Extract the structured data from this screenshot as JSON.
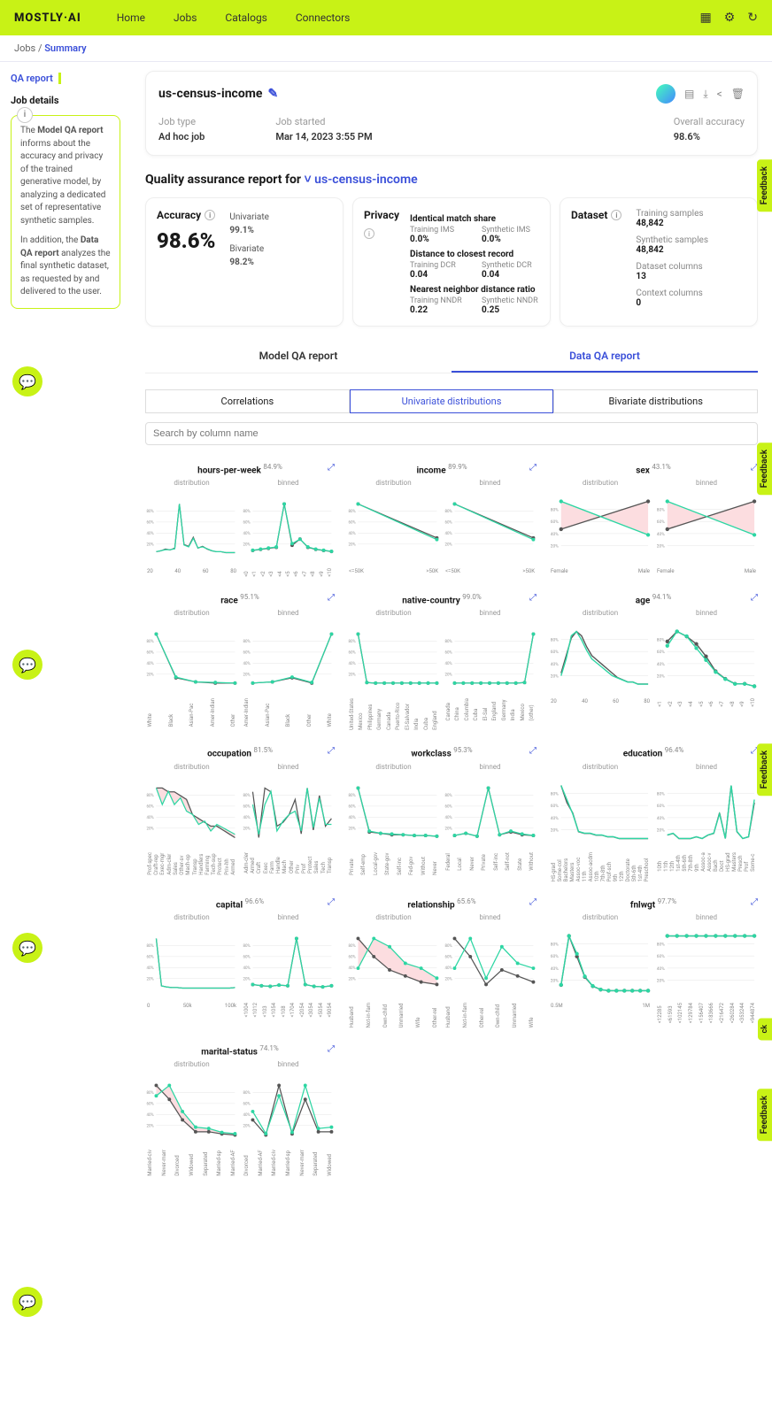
{
  "brand": "MOSTLY·AI",
  "nav": [
    "Home",
    "Jobs",
    "Catalogs",
    "Connectors"
  ],
  "breadcrumb": {
    "root": "Jobs",
    "current": "Summary"
  },
  "sidebar": {
    "title": "QA report",
    "subtitle": "Job details",
    "info_p1_a": "The ",
    "info_p1_b": "Model QA report",
    "info_p1_c": " informs about the accuracy and privacy of the trained generative model, by analyzing a dedicated set of representative synthetic samples.",
    "info_p2_a": "In addition, the ",
    "info_p2_b": "Data QA report",
    "info_p2_c": " analyzes the final synthetic dataset, as requested by and delivered to the user."
  },
  "job": {
    "title": "us-census-income",
    "type_label": "Job type",
    "type": "Ad hoc job",
    "started_label": "Job started",
    "started": "Mar 14, 2023 3:55 PM",
    "accuracy_label": "Overall accuracy",
    "accuracy": "98.6%"
  },
  "qa_heading_prefix": "Quality assurance report for",
  "qa_heading_link": "us-census-income",
  "accuracy_card": {
    "title": "Accuracy",
    "value": "98.6%",
    "univariate_label": "Univariate",
    "univariate": "99.1%",
    "bivariate_label": "Bivariate",
    "bivariate": "98.2%"
  },
  "privacy_card": {
    "title": "Privacy",
    "ims_head": "Identical match share",
    "ims_train_label": "Training IMS",
    "ims_train": "0.0%",
    "ims_syn_label": "Synthetic IMS",
    "ims_syn": "0.0%",
    "dcr_head": "Distance to closest record",
    "dcr_train_label": "Training DCR",
    "dcr_train": "0.04",
    "dcr_syn_label": "Synthetic DCR",
    "dcr_syn": "0.04",
    "nndr_head": "Nearest neighbor distance ratio",
    "nndr_train_label": "Training NNDR",
    "nndr_train": "0.22",
    "nndr_syn_label": "Synthetic NNDR",
    "nndr_syn": "0.25"
  },
  "dataset_card": {
    "title": "Dataset",
    "train_label": "Training samples",
    "train": "48,842",
    "syn_label": "Synthetic samples",
    "syn": "48,842",
    "cols_label": "Dataset columns",
    "cols": "13",
    "ctx_label": "Context columns",
    "ctx": "0"
  },
  "report_tabs": {
    "model": "Model QA report",
    "data": "Data QA report"
  },
  "sub_tabs": {
    "corr": "Correlations",
    "uni": "Univariate distributions",
    "bi": "Bivariate distributions"
  },
  "search_placeholder": "Search by column name",
  "feedback_label": "Feedback",
  "chart_style": {
    "training_color": "#555555",
    "synthetic_color": "#2dd6a3",
    "fill_color": "#fcdde0",
    "grid_color": "#e3e3e3",
    "background": "#ffffff",
    "line_width": 1.4,
    "marker_r": 2.2,
    "yticks_pct": [
      "20%",
      "40%",
      "60%",
      "80%"
    ],
    "label_color": "#999999",
    "dist_label": "distribution",
    "binned_label": "binned"
  },
  "charts": [
    {
      "name": "hours-per-week",
      "acc": "84.9%",
      "xticks": [
        "20",
        "40",
        "60",
        "80"
      ],
      "dist_train": [
        2,
        3,
        5,
        4,
        6,
        55,
        10,
        8,
        18,
        6,
        8,
        5,
        3,
        2,
        2,
        1,
        1,
        1
      ],
      "dist_syn": [
        2,
        3,
        4,
        4,
        5,
        52,
        9,
        7,
        16,
        6,
        7,
        5,
        3,
        2,
        2,
        1,
        1,
        1
      ],
      "bin_xticks": [
        "<0",
        "<1",
        "<2",
        "<3",
        "<4",
        "<5",
        "<6",
        "<7",
        "<8",
        "<9",
        "<10"
      ],
      "bin_train": [
        3,
        4,
        5,
        6,
        48,
        8,
        14,
        6,
        4,
        3,
        2
      ],
      "bin_syn": [
        3,
        4,
        5,
        6,
        45,
        9,
        13,
        6,
        4,
        3,
        2
      ]
    },
    {
      "name": "income",
      "acc": "89.9%",
      "xticks": [
        "<=50K",
        ">50K"
      ],
      "dist_train": [
        76,
        24
      ],
      "dist_syn": [
        78,
        22
      ],
      "bin_xticks": [
        "<=50K",
        ">50K"
      ],
      "bin_train": [
        76,
        24
      ],
      "bin_syn": [
        78,
        22
      ]
    },
    {
      "name": "sex",
      "acc": "43.1%",
      "xticks": [
        "Female",
        "Male"
      ],
      "dist_train": [
        33,
        67
      ],
      "dist_syn": [
        72,
        28
      ],
      "dist_fill": true,
      "bin_xticks": [
        "Female",
        "Male"
      ],
      "bin_train": [
        33,
        67
      ],
      "bin_syn": [
        72,
        28
      ],
      "bin_fill": true
    },
    {
      "name": "race",
      "acc": "95.1%",
      "xticks": [
        "White",
        "Black",
        "Asian-Pac",
        "Amer-Indian",
        "Other"
      ],
      "dist_train": [
        85,
        10,
        3,
        1,
        1
      ],
      "dist_syn": [
        83,
        11,
        3,
        2,
        1
      ],
      "bin_xticks": [
        "Amer-Indian",
        "Asian-Pac",
        "Black",
        "Other",
        "White"
      ],
      "bin_train": [
        1,
        3,
        10,
        1,
        85
      ],
      "bin_syn": [
        1,
        3,
        11,
        2,
        83
      ]
    },
    {
      "name": "native-country",
      "acc": "99.0%",
      "xticks": [
        "United-States",
        "Mexico",
        "Philippines",
        "Germany",
        "Canada",
        "Puerto-Rico",
        "El-Salvador",
        "India",
        "Cuba",
        "England"
      ],
      "dist_train": [
        90,
        2,
        1,
        1,
        1,
        1,
        1,
        1,
        1,
        1
      ],
      "dist_syn": [
        89,
        2,
        1,
        1,
        1,
        1,
        1,
        1,
        1,
        1
      ],
      "bin_xticks": [
        "Canada",
        "China",
        "Columbia",
        "Cuba",
        "El-Sal",
        "England",
        "Germany",
        "India",
        "Mexico",
        "(other)"
      ],
      "bin_train": [
        1,
        1,
        1,
        1,
        1,
        1,
        1,
        1,
        2,
        90
      ],
      "bin_syn": [
        1,
        1,
        1,
        1,
        1,
        1,
        1,
        1,
        2,
        89
      ]
    },
    {
      "name": "age",
      "acc": "94.1%",
      "xticks": [
        "20",
        "40",
        "60",
        "80"
      ],
      "dist_train": [
        6,
        14,
        22,
        25,
        23,
        18,
        14,
        12,
        10,
        8,
        6,
        4,
        3,
        2,
        2,
        1,
        1,
        1
      ],
      "dist_syn": [
        5,
        13,
        24,
        26,
        22,
        17,
        13,
        11,
        9,
        7,
        5,
        4,
        3,
        2,
        2,
        1,
        1,
        1
      ],
      "bin_xticks": [
        "<1",
        "<2",
        "<3",
        "<4",
        "<5",
        "<6",
        "<7",
        "<8",
        "<9",
        "<10"
      ],
      "bin_train": [
        18,
        22,
        20,
        17,
        12,
        6,
        3,
        1,
        1,
        0
      ],
      "bin_syn": [
        17,
        23,
        21,
        16,
        11,
        6,
        3,
        1,
        1,
        0
      ]
    },
    {
      "name": "occupation",
      "acc": "81.5%",
      "xticks": [
        "Prof-spec",
        "Craft-rep",
        "Exec-mgr",
        "Adm-cler",
        "Sales",
        "Other-sv",
        "Mach-op",
        "Transp",
        "Handlers",
        "Farming",
        "Tech-sup",
        "Protect",
        "Priv-hh",
        "Armed"
      ],
      "dist_train": [
        13,
        13,
        12,
        12,
        11,
        10,
        6,
        5,
        4,
        3,
        3,
        2,
        1,
        0
      ],
      "dist_syn": [
        15,
        10,
        14,
        10,
        12,
        8,
        7,
        4,
        5,
        2,
        4,
        3,
        2,
        1
      ],
      "dist_fill": true,
      "bin_xticks": [
        "Adm-cler",
        "Armed",
        "Craft",
        "Exec",
        "Farm",
        "Handle",
        "Mach",
        "Other",
        "Priv",
        "Prof",
        "Protect",
        "Sales",
        "Tech",
        "Transp"
      ],
      "bin_train": [
        12,
        0,
        13,
        12,
        3,
        4,
        6,
        10,
        1,
        13,
        2,
        11,
        3,
        5
      ],
      "bin_syn": [
        10,
        1,
        10,
        14,
        2,
        5,
        7,
        8,
        2,
        15,
        3,
        12,
        4,
        4
      ]
    },
    {
      "name": "workclass",
      "acc": "95.3%",
      "xticks": [
        "Private",
        "Self-emp",
        "Local-gov",
        "State-gov",
        "Self-inc",
        "Fed-gov",
        "Without",
        "Never"
      ],
      "dist_train": [
        70,
        8,
        6,
        4,
        4,
        3,
        3,
        2
      ],
      "dist_syn": [
        68,
        9,
        6,
        5,
        4,
        3,
        3,
        2
      ],
      "bin_xticks": [
        "Federal",
        "Local",
        "Never",
        "Private",
        "Self-inc",
        "Self-not",
        "State",
        "Without"
      ],
      "bin_train": [
        3,
        6,
        2,
        70,
        4,
        8,
        4,
        3
      ],
      "bin_syn": [
        3,
        6,
        2,
        68,
        4,
        9,
        5,
        3
      ]
    },
    {
      "name": "education",
      "acc": "96.4%",
      "xticks": [
        "HS-grad",
        "Some-col",
        "Bachelors",
        "Masters",
        "Assoc-voc",
        "11th",
        "Assoc-acdm",
        "10th",
        "7th-8th",
        "Prof-sch",
        "9th",
        "12th",
        "Doctorate",
        "5th-6th",
        "1st-4th",
        "Preschool"
      ],
      "dist_train": [
        32,
        22,
        16,
        5,
        4,
        4,
        3,
        3,
        2,
        2,
        1,
        1,
        1,
        1,
        1,
        1
      ],
      "dist_syn": [
        31,
        23,
        15,
        5,
        4,
        4,
        3,
        3,
        2,
        2,
        1,
        1,
        1,
        1,
        1,
        1
      ],
      "bin_xticks": [
        "10th",
        "11th",
        "12th",
        "1st-4th",
        "5th-6th",
        "7th-8th",
        "9th",
        "Assoc-a",
        "Assoc-v",
        "Bach",
        "Doct",
        "HS-grad",
        "Masters",
        "Presch",
        "Prof",
        "Some-c"
      ],
      "bin_train": [
        3,
        4,
        1,
        1,
        1,
        2,
        1,
        3,
        4,
        16,
        1,
        32,
        5,
        1,
        2,
        22
      ],
      "bin_syn": [
        3,
        4,
        1,
        1,
        1,
        2,
        1,
        3,
        4,
        15,
        1,
        31,
        5,
        1,
        2,
        23
      ]
    },
    {
      "name": "capital",
      "acc": "96.6%",
      "xticks": [
        "0",
        "50k",
        "100k"
      ],
      "dist_train": [
        92,
        4,
        2,
        1,
        1,
        0,
        0,
        0,
        0,
        0,
        0,
        0,
        0,
        0,
        0,
        1
      ],
      "dist_syn": [
        91,
        4,
        2,
        1,
        1,
        0,
        0,
        0,
        0,
        0,
        0,
        0,
        0,
        0,
        0,
        1
      ],
      "bin_xticks": [
        "<1004",
        "<1012",
        "<103",
        "<1054",
        "<108",
        "<1704",
        "<2054",
        "<3054",
        "<5054",
        "<9054"
      ],
      "bin_train": [
        6,
        4,
        3,
        5,
        4,
        85,
        6,
        3,
        2,
        4
      ],
      "bin_syn": [
        6,
        4,
        3,
        5,
        4,
        83,
        6,
        3,
        2,
        4
      ]
    },
    {
      "name": "relationship",
      "acc": "65.6%",
      "xticks": [
        "Husband",
        "Not-in-fam",
        "Own-child",
        "Unmarried",
        "Wife",
        "Other-rel"
      ],
      "dist_train": [
        41,
        26,
        15,
        10,
        5,
        3
      ],
      "dist_syn": [
        12,
        30,
        25,
        15,
        12,
        6
      ],
      "dist_fill": true,
      "bin_xticks": [
        "Husband",
        "Not-in-fam",
        "Other-rel",
        "Own-child",
        "Unmarried",
        "Wife"
      ],
      "bin_train": [
        41,
        26,
        3,
        15,
        10,
        5
      ],
      "bin_syn": [
        12,
        30,
        6,
        25,
        15,
        12
      ]
    },
    {
      "name": "fnlwgt",
      "acc": "97.7%",
      "xticks": [
        "0.5M",
        "1M"
      ],
      "dist_train": [
        5,
        48,
        30,
        12,
        4,
        1,
        0,
        0,
        0,
        0,
        0,
        0
      ],
      "dist_syn": [
        5,
        46,
        31,
        12,
        4,
        1,
        0,
        0,
        0,
        0,
        0,
        0
      ],
      "bin_xticks": [
        "<12285",
        "<61593",
        "<102145",
        "<129784",
        "<156407",
        "<183666",
        "<216472",
        "<260284",
        "<353244",
        "<944874"
      ],
      "bin_train": [
        10,
        10,
        10,
        10,
        10,
        10,
        10,
        10,
        10,
        10
      ],
      "bin_syn": [
        10,
        10,
        10,
        10,
        10,
        10,
        10,
        10,
        10,
        10
      ]
    },
    {
      "name": "marital-status",
      "acc": "74.1%",
      "xticks": [
        "Married-civ",
        "Never-marr",
        "Divorced",
        "Widowed",
        "Separated",
        "Married-sp",
        "Married-AF"
      ],
      "dist_train": [
        46,
        33,
        14,
        3,
        3,
        1,
        0
      ],
      "dist_syn": [
        30,
        38,
        18,
        6,
        5,
        2,
        1
      ],
      "dist_fill": true,
      "bin_xticks": [
        "Divorced",
        "Married-AF",
        "Married-civ",
        "Married-sp",
        "Never-marr",
        "Separated",
        "Widowed"
      ],
      "bin_train": [
        14,
        0,
        46,
        1,
        33,
        3,
        3
      ],
      "bin_syn": [
        18,
        1,
        30,
        2,
        38,
        5,
        6
      ]
    }
  ]
}
